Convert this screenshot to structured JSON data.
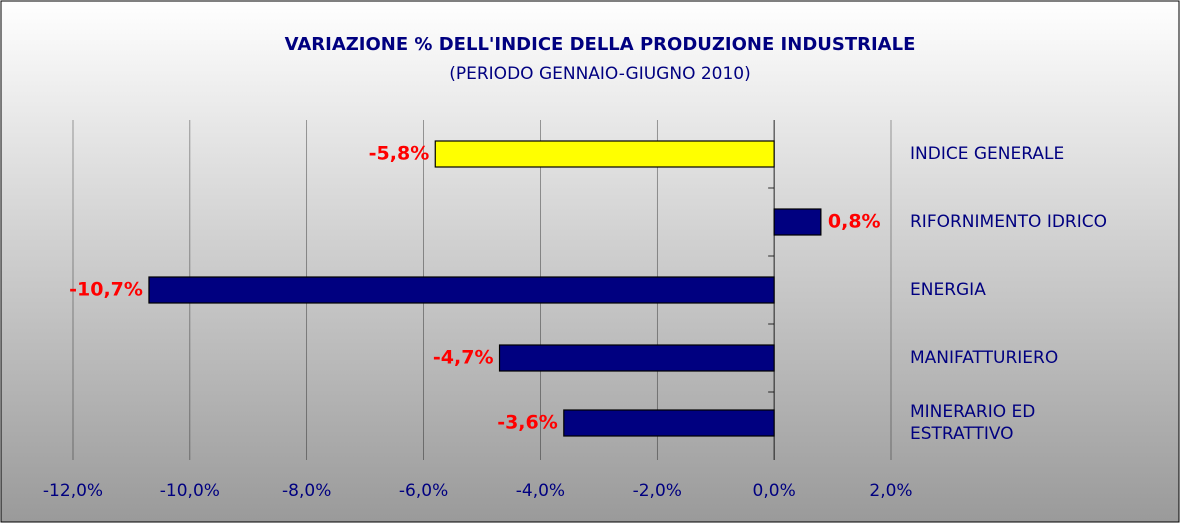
{
  "chart_data": {
    "type": "hbar",
    "title": "VARIAZIONE % DELL'INDICE DELLA PRODUZIONE INDUSTRIALE",
    "subtitle": "(PERIODO GENNAIO-GIUGNO 2010)",
    "categories": [
      "INDICE GENERALE",
      "RIFORNIMENTO IDRICO",
      "ENERGIA",
      "MANIFATTURIERO",
      "MINERARIO ED ESTRATTIVO"
    ],
    "values": [
      -5.8,
      0.8,
      -10.7,
      -4.7,
      -3.6
    ],
    "value_labels": [
      "-5,8%",
      "0,8%",
      "-10,7%",
      "-4,7%",
      "-3,6%"
    ],
    "colors": [
      "#ffff00",
      "#000080",
      "#000080",
      "#000080",
      "#000080"
    ],
    "xlim": [
      -12,
      2
    ],
    "xticks": [
      {
        "value": -12,
        "label": "-12,0%"
      },
      {
        "value": -10,
        "label": "-10,0%"
      },
      {
        "value": -8,
        "label": "-8,0%"
      },
      {
        "value": -6,
        "label": "-6,0%"
      },
      {
        "value": -4,
        "label": "-4,0%"
      },
      {
        "value": -2,
        "label": "-2,0%"
      },
      {
        "value": 0,
        "label": "0,0%"
      },
      {
        "value": 2,
        "label": "2,0%"
      }
    ],
    "grid": true
  }
}
